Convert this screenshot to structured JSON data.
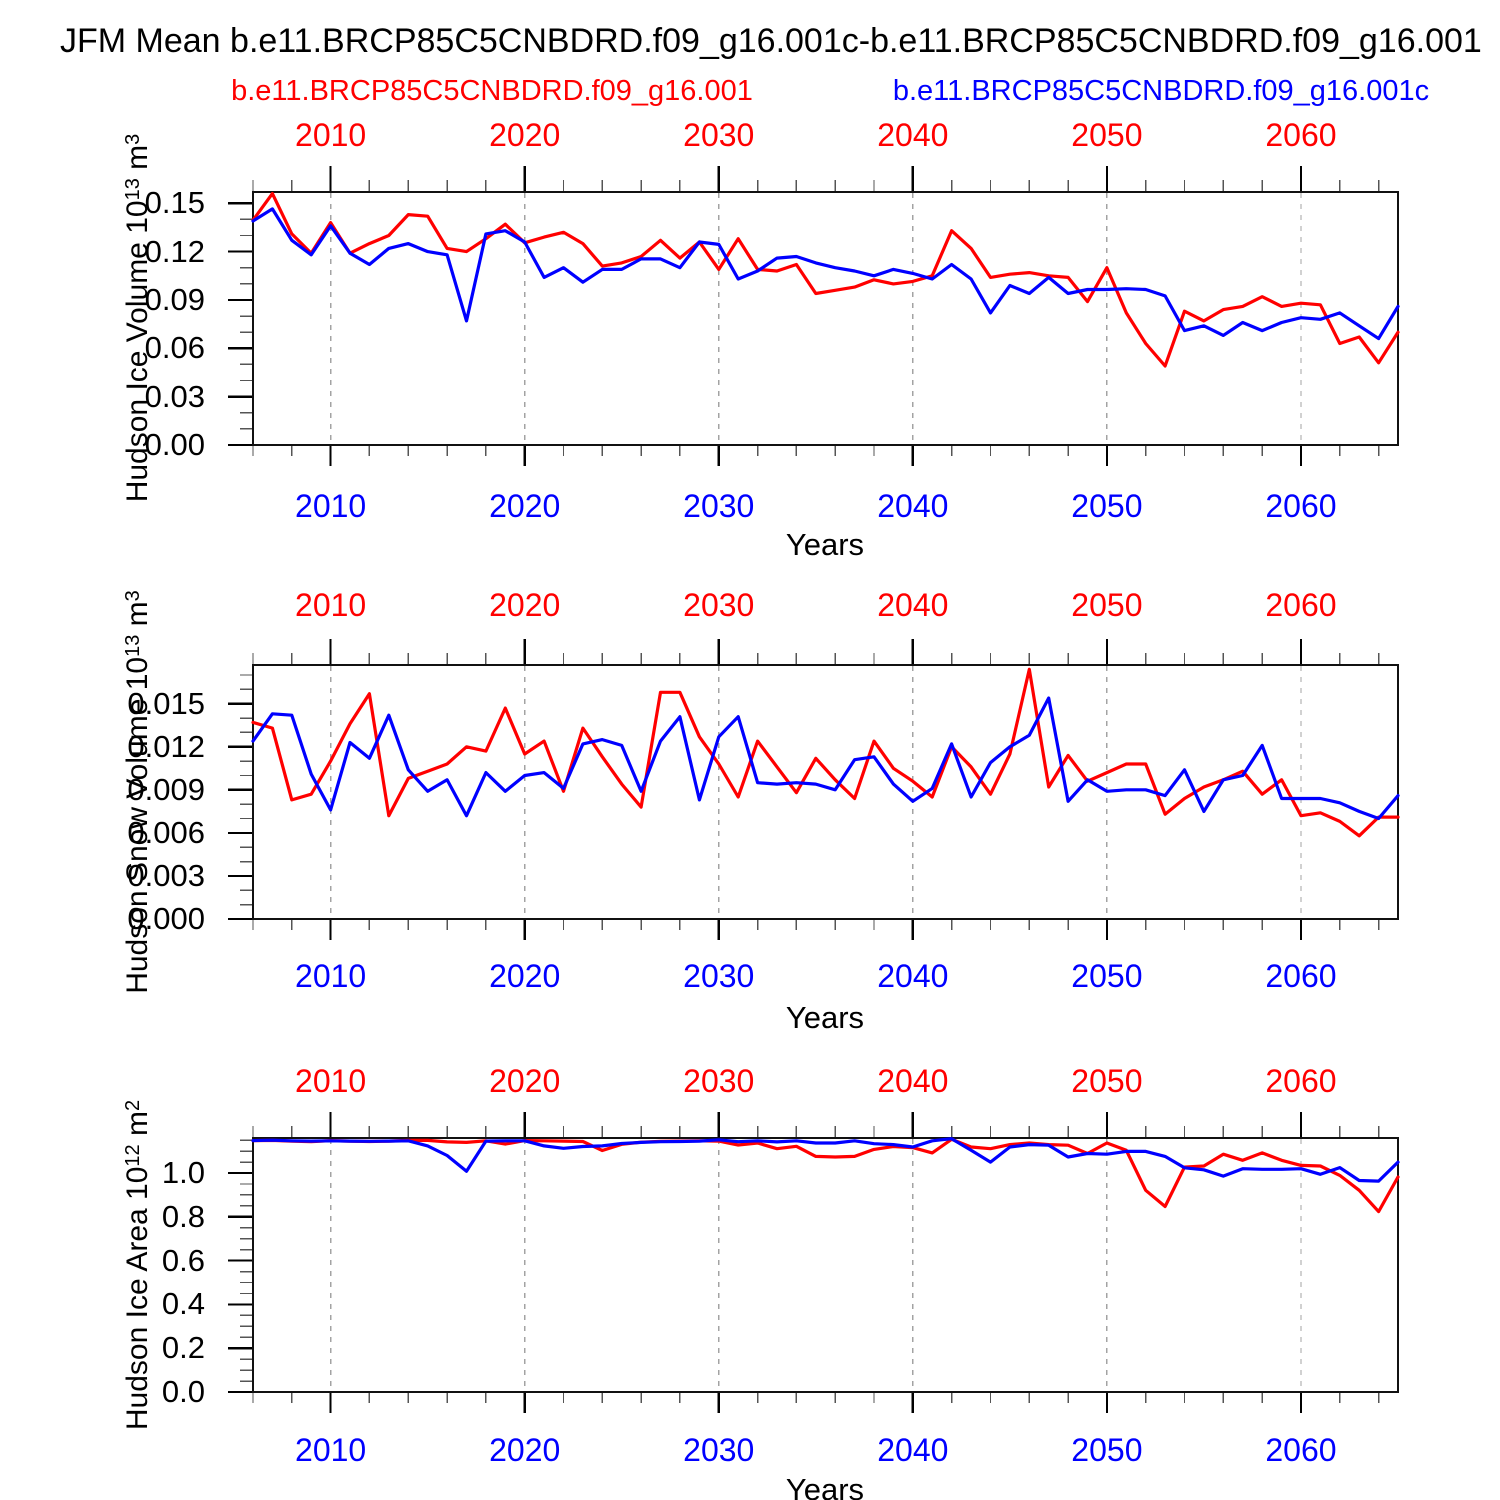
{
  "title": "JFM Mean b.e11.BRCP85C5CNBDRD.f09_g16.001c-b.e11.BRCP85C5CNBDRD.f09_g16.001",
  "legend": {
    "series_001": {
      "label": "b.e11.BRCP85C5CNBDRD.f09_g16.001",
      "color": "#ff0000"
    },
    "series_001c": {
      "label": "b.e11.BRCP85C5CNBDRD.f09_g16.001c",
      "color": "#0000ff"
    }
  },
  "x_axis": {
    "label": "Years",
    "range": [
      2006,
      2065
    ],
    "decade_ticks": [
      2010,
      2020,
      2030,
      2040,
      2050,
      2060
    ],
    "decade_labels": [
      "2010",
      "2020",
      "2030",
      "2040",
      "2050",
      "2060"
    ],
    "minor_tick_step_years": 2,
    "top_label_color": "#ff0000",
    "bottom_label_color": "#0000ff",
    "grid": "dashed-vertical-at-decades"
  },
  "chart_data": [
    {
      "type": "line",
      "panel": "hudson-ice-volume",
      "ylabel": {
        "base": "Hudson Ice Volume 10",
        "exp": "13",
        "unit": " m",
        "unit_exp": "3"
      },
      "ylim": [
        0,
        0.157
      ],
      "yticks": [
        0,
        0.03,
        0.06,
        0.09,
        0.12,
        0.15
      ],
      "ytick_labels": [
        "0.00",
        "0.03",
        "0.06",
        "0.09",
        "0.12",
        "0.15"
      ],
      "y_minor_step": 0.01,
      "series": [
        {
          "name": "b.e11.BRCP85C5CNBDRD.f09_g16.001",
          "color": "#ff0000",
          "values": [
            0.1395,
            0.156,
            0.131,
            0.119,
            0.138,
            0.119,
            0.125,
            0.13,
            0.143,
            0.142,
            0.122,
            0.12,
            0.128,
            0.137,
            0.1255,
            0.129,
            0.132,
            0.125,
            0.111,
            0.113,
            0.117,
            0.127,
            0.116,
            0.126,
            0.109,
            0.128,
            0.109,
            0.108,
            0.112,
            0.094,
            0.096,
            0.098,
            0.1025,
            0.1,
            0.1015,
            0.105,
            0.133,
            0.122,
            0.104,
            0.106,
            0.107,
            0.105,
            0.104,
            0.089,
            0.11,
            0.082,
            0.063,
            0.049,
            0.083,
            0.077,
            0.084,
            0.086,
            0.092,
            0.086,
            0.088,
            0.087,
            0.063,
            0.067,
            0.051,
            0.07
          ]
        },
        {
          "name": "b.e11.BRCP85C5CNBDRD.f09_g16.001c",
          "color": "#0000ff",
          "values": [
            0.139,
            0.1465,
            0.127,
            0.118,
            0.136,
            0.119,
            0.112,
            0.122,
            0.125,
            0.12,
            0.118,
            0.077,
            0.131,
            0.133,
            0.126,
            0.104,
            0.11,
            0.101,
            0.109,
            0.109,
            0.1155,
            0.1155,
            0.11,
            0.126,
            0.1245,
            0.103,
            0.108,
            0.116,
            0.117,
            0.113,
            0.11,
            0.108,
            0.105,
            0.109,
            0.1065,
            0.103,
            0.112,
            0.103,
            0.082,
            0.099,
            0.094,
            0.104,
            0.094,
            0.0965,
            0.0965,
            0.097,
            0.0965,
            0.0925,
            0.071,
            0.074,
            0.068,
            0.076,
            0.071,
            0.076,
            0.079,
            0.078,
            0.082,
            0.074,
            0.066,
            0.086
          ]
        }
      ]
    },
    {
      "type": "line",
      "panel": "hudson-snow-volume",
      "ylabel": {
        "base": "Hudson Snow Volume 10",
        "exp": "13",
        "unit": " m",
        "unit_exp": "3"
      },
      "ylim": [
        0,
        0.0177
      ],
      "yticks": [
        0,
        0.003,
        0.006,
        0.009,
        0.012,
        0.015
      ],
      "ytick_labels": [
        "0.000",
        "0.003",
        "0.006",
        "0.009",
        "0.012",
        "0.015"
      ],
      "y_minor_step": 0.001,
      "series": [
        {
          "name": "b.e11.BRCP85C5CNBDRD.f09_g16.001",
          "color": "#ff0000",
          "values": [
            0.0137,
            0.0133,
            0.0083,
            0.0087,
            0.011,
            0.0136,
            0.0157,
            0.0072,
            0.0098,
            0.0103,
            0.0108,
            0.012,
            0.0117,
            0.0147,
            0.0115,
            0.0124,
            0.0089,
            0.0133,
            0.0113,
            0.0094,
            0.0078,
            0.0158,
            0.0158,
            0.0127,
            0.0108,
            0.0085,
            0.0124,
            0.0106,
            0.0088,
            0.0112,
            0.0097,
            0.0084,
            0.0124,
            0.0105,
            0.0096,
            0.0085,
            0.012,
            0.0106,
            0.0087,
            0.0115,
            0.0174,
            0.0092,
            0.0114,
            0.0096,
            0.0102,
            0.0108,
            0.0108,
            0.0073,
            0.0084,
            0.0092,
            0.0097,
            0.0103,
            0.0087,
            0.0097,
            0.0072,
            0.0074,
            0.0068,
            0.0058,
            0.0071,
            0.0071
          ]
        },
        {
          "name": "b.e11.BRCP85C5CNBDRD.f09_g16.001c",
          "color": "#0000ff",
          "values": [
            0.0124,
            0.0143,
            0.0142,
            0.0101,
            0.0076,
            0.0123,
            0.0112,
            0.0142,
            0.0104,
            0.0089,
            0.0097,
            0.0072,
            0.0102,
            0.0089,
            0.01,
            0.0102,
            0.0091,
            0.0122,
            0.0125,
            0.0121,
            0.0089,
            0.0124,
            0.0141,
            0.0083,
            0.0127,
            0.0141,
            0.0095,
            0.0094,
            0.0095,
            0.0094,
            0.009,
            0.0111,
            0.0113,
            0.0094,
            0.0082,
            0.0091,
            0.0122,
            0.0085,
            0.0109,
            0.012,
            0.0128,
            0.0154,
            0.0082,
            0.0097,
            0.0089,
            0.009,
            0.009,
            0.0086,
            0.0104,
            0.0075,
            0.0097,
            0.01,
            0.0121,
            0.0084,
            0.0084,
            0.0084,
            0.0081,
            0.0075,
            0.007,
            0.0086
          ]
        }
      ]
    },
    {
      "type": "line",
      "panel": "hudson-ice-area",
      "ylabel": {
        "base": "Hudson Ice Area 10",
        "exp": "12",
        "unit": " m",
        "unit_exp": "2"
      },
      "ylim": [
        0,
        1.16
      ],
      "yticks": [
        0,
        0.2,
        0.4,
        0.6,
        0.8,
        1.0
      ],
      "ytick_labels": [
        "0.0",
        "0.2",
        "0.4",
        "0.6",
        "0.8",
        "1.0"
      ],
      "y_minor_step": 0.05,
      "series": [
        {
          "name": "b.e11.BRCP85C5CNBDRD.f09_g16.001",
          "color": "#ff0000",
          "values": [
            1.148,
            1.149,
            1.146,
            1.143,
            1.148,
            1.146,
            1.144,
            1.146,
            1.149,
            1.149,
            1.142,
            1.14,
            1.147,
            1.132,
            1.148,
            1.147,
            1.146,
            1.144,
            1.103,
            1.131,
            1.141,
            1.145,
            1.146,
            1.147,
            1.146,
            1.128,
            1.137,
            1.111,
            1.122,
            1.076,
            1.073,
            1.076,
            1.108,
            1.121,
            1.116,
            1.092,
            1.154,
            1.119,
            1.111,
            1.13,
            1.137,
            1.13,
            1.127,
            1.089,
            1.137,
            1.104,
            0.921,
            0.847,
            1.027,
            1.032,
            1.086,
            1.058,
            1.092,
            1.058,
            1.035,
            1.032,
            0.989,
            0.921,
            0.824,
            0.982
          ]
        },
        {
          "name": "b.e11.BRCP85C5CNBDRD.f09_g16.001c",
          "color": "#0000ff",
          "values": [
            1.148,
            1.15,
            1.147,
            1.146,
            1.147,
            1.146,
            1.145,
            1.146,
            1.147,
            1.124,
            1.08,
            1.008,
            1.146,
            1.147,
            1.147,
            1.124,
            1.113,
            1.121,
            1.124,
            1.135,
            1.14,
            1.143,
            1.144,
            1.146,
            1.152,
            1.143,
            1.147,
            1.142,
            1.147,
            1.137,
            1.137,
            1.147,
            1.134,
            1.13,
            1.119,
            1.147,
            1.157,
            1.104,
            1.05,
            1.119,
            1.13,
            1.127,
            1.073,
            1.089,
            1.086,
            1.099,
            1.099,
            1.076,
            1.024,
            1.015,
            0.986,
            1.02,
            1.017,
            1.017,
            1.02,
            0.994,
            1.025,
            0.966,
            0.963,
            1.05
          ]
        }
      ]
    }
  ]
}
